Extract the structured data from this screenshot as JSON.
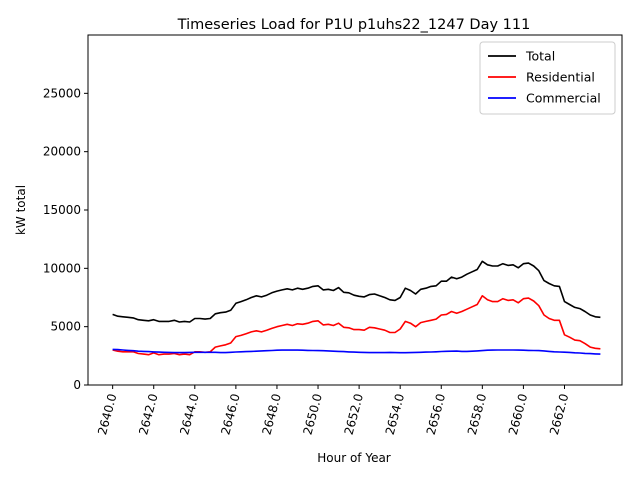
{
  "chart_data": {
    "type": "line",
    "title": "Timeseries Load for P1U p1uhs22_1247  Day 111",
    "xlabel": "Hour of Year",
    "ylabel": "kW total",
    "xlim": [
      2638.8,
      2664.8
    ],
    "ylim": [
      0,
      30000
    ],
    "xticks": [
      2640,
      2642,
      2644,
      2646,
      2648,
      2650,
      2652,
      2654,
      2656,
      2658,
      2660,
      2662
    ],
    "xtick_labels": [
      "2640.0",
      "2642.0",
      "2644.0",
      "2646.0",
      "2648.0",
      "2650.0",
      "2652.0",
      "2654.0",
      "2656.0",
      "2658.0",
      "2660.0",
      "2662.0"
    ],
    "yticks": [
      0,
      5000,
      10000,
      15000,
      20000,
      25000
    ],
    "ytick_labels": [
      "0",
      "5000",
      "10000",
      "15000",
      "20000",
      "25000"
    ],
    "legend_position": "top-right",
    "x": [
      2640.0,
      2640.25,
      2640.5,
      2640.75,
      2641.0,
      2641.25,
      2641.5,
      2641.75,
      2642.0,
      2642.25,
      2642.5,
      2642.75,
      2643.0,
      2643.25,
      2643.5,
      2643.75,
      2644.0,
      2644.25,
      2644.5,
      2644.75,
      2645.0,
      2645.25,
      2645.5,
      2645.75,
      2646.0,
      2646.25,
      2646.5,
      2646.75,
      2647.0,
      2647.25,
      2647.5,
      2647.75,
      2648.0,
      2648.25,
      2648.5,
      2648.75,
      2649.0,
      2649.25,
      2649.5,
      2649.75,
      2650.0,
      2650.25,
      2650.5,
      2650.75,
      2651.0,
      2651.25,
      2651.5,
      2651.75,
      2652.0,
      2652.25,
      2652.5,
      2652.75,
      2653.0,
      2653.25,
      2653.5,
      2653.75,
      2654.0,
      2654.25,
      2654.5,
      2654.75,
      2655.0,
      2655.25,
      2655.5,
      2655.75,
      2656.0,
      2656.25,
      2656.5,
      2656.75,
      2657.0,
      2657.25,
      2657.5,
      2657.75,
      2658.0,
      2658.25,
      2658.5,
      2658.75,
      2659.0,
      2659.25,
      2659.5,
      2659.75,
      2660.0,
      2660.25,
      2660.5,
      2660.75,
      2661.0,
      2661.25,
      2661.5,
      2661.75,
      2662.0,
      2662.25,
      2662.5,
      2662.75,
      2663.0,
      2663.25,
      2663.5,
      2663.75
    ],
    "series": [
      {
        "name": "Total",
        "color": "#000000",
        "values": [
          6050,
          5900,
          5850,
          5800,
          5750,
          5600,
          5550,
          5500,
          5600,
          5450,
          5450,
          5450,
          5550,
          5400,
          5450,
          5400,
          5700,
          5700,
          5650,
          5700,
          6100,
          6200,
          6250,
          6400,
          7000,
          7150,
          7300,
          7500,
          7650,
          7550,
          7700,
          7900,
          8050,
          8150,
          8250,
          8150,
          8300,
          8200,
          8300,
          8450,
          8500,
          8150,
          8200,
          8100,
          8350,
          7950,
          7900,
          7700,
          7600,
          7550,
          7750,
          7800,
          7650,
          7500,
          7300,
          7250,
          7500,
          8300,
          8100,
          7800,
          8200,
          8300,
          8450,
          8500,
          8900,
          8900,
          9250,
          9100,
          9250,
          9500,
          9700,
          9900,
          10600,
          10300,
          10200,
          10200,
          10400,
          10250,
          10300,
          10050,
          10400,
          10450,
          10200,
          9800,
          8950,
          8700,
          8500,
          8450,
          7150,
          6900,
          6650,
          6550,
          6300,
          6000,
          5850,
          5800
        ]
      },
      {
        "name": "Residential",
        "color": "#ff0000",
        "values": [
          3000,
          2900,
          2850,
          2850,
          2850,
          2700,
          2650,
          2600,
          2750,
          2600,
          2650,
          2650,
          2700,
          2600,
          2650,
          2600,
          2850,
          2850,
          2800,
          2850,
          3250,
          3350,
          3450,
          3600,
          4150,
          4250,
          4400,
          4550,
          4650,
          4550,
          4700,
          4850,
          5000,
          5100,
          5200,
          5100,
          5250,
          5200,
          5300,
          5450,
          5500,
          5150,
          5200,
          5100,
          5300,
          4950,
          4900,
          4750,
          4750,
          4700,
          4950,
          4900,
          4800,
          4700,
          4500,
          4500,
          4800,
          5450,
          5300,
          5000,
          5350,
          5450,
          5550,
          5650,
          6000,
          6050,
          6300,
          6150,
          6300,
          6500,
          6700,
          6900,
          7650,
          7300,
          7150,
          7150,
          7400,
          7250,
          7300,
          7050,
          7400,
          7450,
          7200,
          6800,
          6000,
          5700,
          5550,
          5550,
          4300,
          4100,
          3850,
          3800,
          3550,
          3250,
          3150,
          3100
        ]
      },
      {
        "name": "Commercial",
        "color": "#0000ff",
        "values": [
          3050,
          3030,
          3000,
          2970,
          2940,
          2900,
          2880,
          2860,
          2840,
          2820,
          2800,
          2790,
          2780,
          2780,
          2780,
          2790,
          2800,
          2800,
          2800,
          2800,
          2800,
          2780,
          2780,
          2800,
          2830,
          2850,
          2860,
          2880,
          2900,
          2920,
          2940,
          2960,
          2980,
          2990,
          2990,
          2990,
          2990,
          2980,
          2970,
          2960,
          2950,
          2940,
          2920,
          2900,
          2880,
          2860,
          2840,
          2820,
          2800,
          2790,
          2780,
          2780,
          2780,
          2780,
          2790,
          2780,
          2770,
          2770,
          2780,
          2790,
          2800,
          2820,
          2830,
          2850,
          2870,
          2890,
          2900,
          2910,
          2880,
          2880,
          2900,
          2920,
          2950,
          2980,
          2990,
          3000,
          3000,
          3000,
          3000,
          2990,
          2980,
          2970,
          2960,
          2950,
          2920,
          2880,
          2850,
          2830,
          2810,
          2790,
          2760,
          2740,
          2710,
          2690,
          2670,
          2650
        ]
      }
    ]
  }
}
